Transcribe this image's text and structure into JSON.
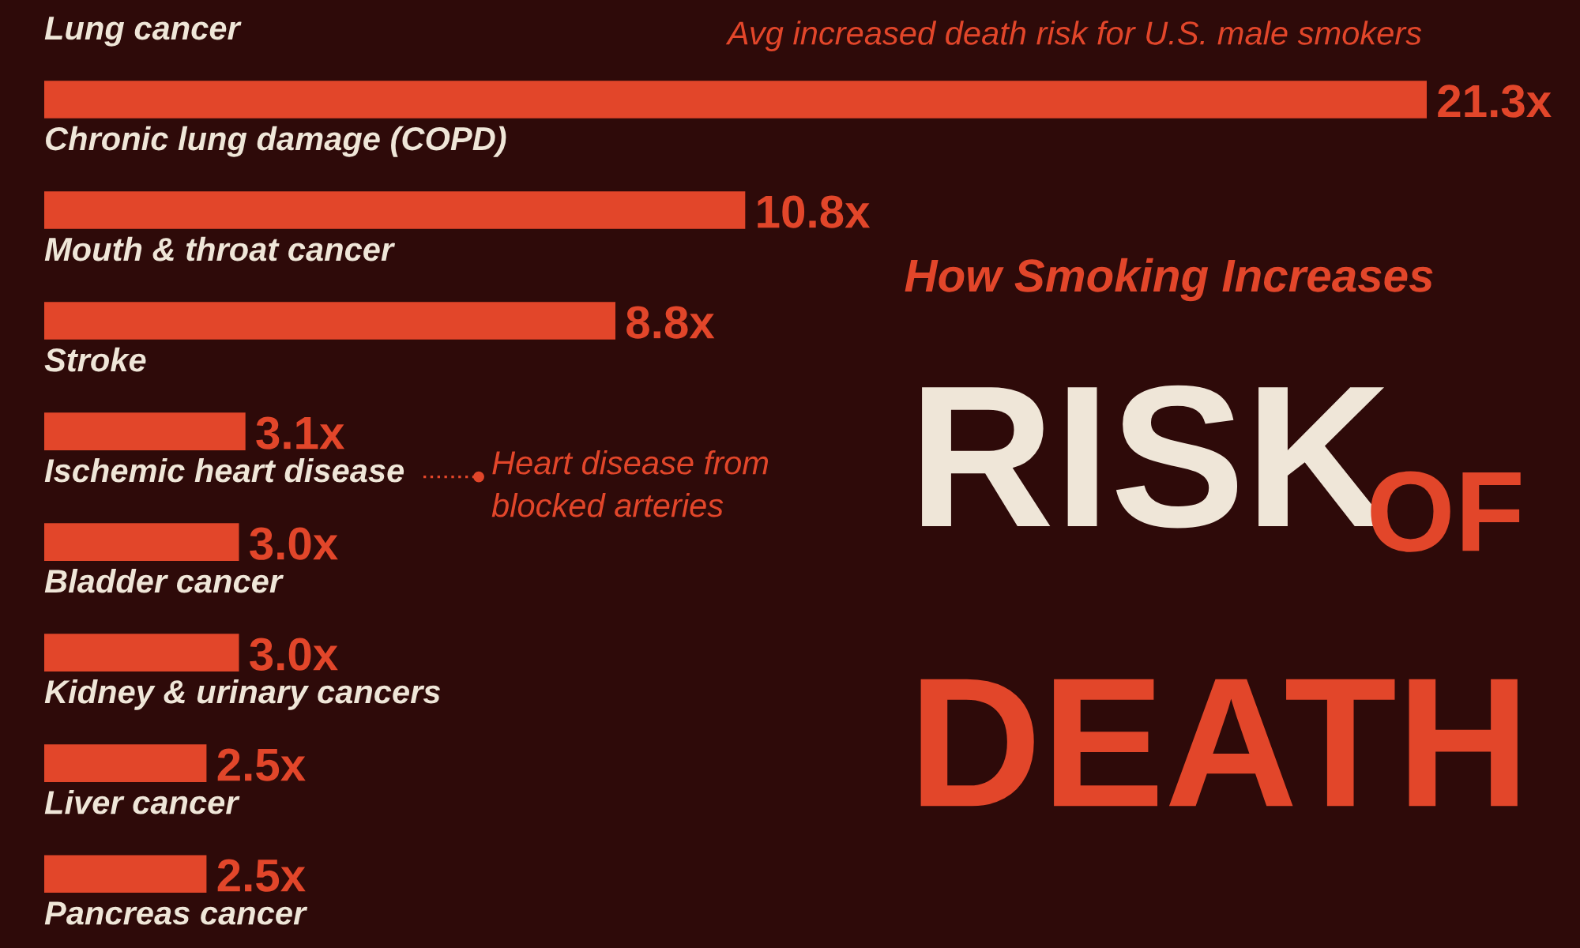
{
  "chart_data": {
    "type": "bar",
    "orientation": "horizontal",
    "title": "How Smoking Increases",
    "subtitle": "RISK OF DEATH",
    "categories": [
      "Lung cancer",
      "Chronic lung damage (COPD)",
      "Mouth & throat cancer",
      "Stroke",
      "Ischemic heart disease",
      "Bladder cancer",
      "Kidney & urinary cancers",
      "Liver cancer",
      "Pancreas cancer"
    ],
    "values": [
      21.3,
      10.8,
      8.8,
      3.1,
      3.0,
      3.0,
      2.5,
      2.5,
      null
    ],
    "value_labels": [
      "21.3x",
      "10.8x",
      "8.8x",
      "3.1x",
      "3.0x",
      "3.0x",
      "2.5x",
      "2.5x",
      null
    ],
    "color": "#e2462a",
    "annotations": [
      "Avg increased death risk for U.S. male smokers",
      "Heart disease from\nblocked arteries"
    ]
  }
}
